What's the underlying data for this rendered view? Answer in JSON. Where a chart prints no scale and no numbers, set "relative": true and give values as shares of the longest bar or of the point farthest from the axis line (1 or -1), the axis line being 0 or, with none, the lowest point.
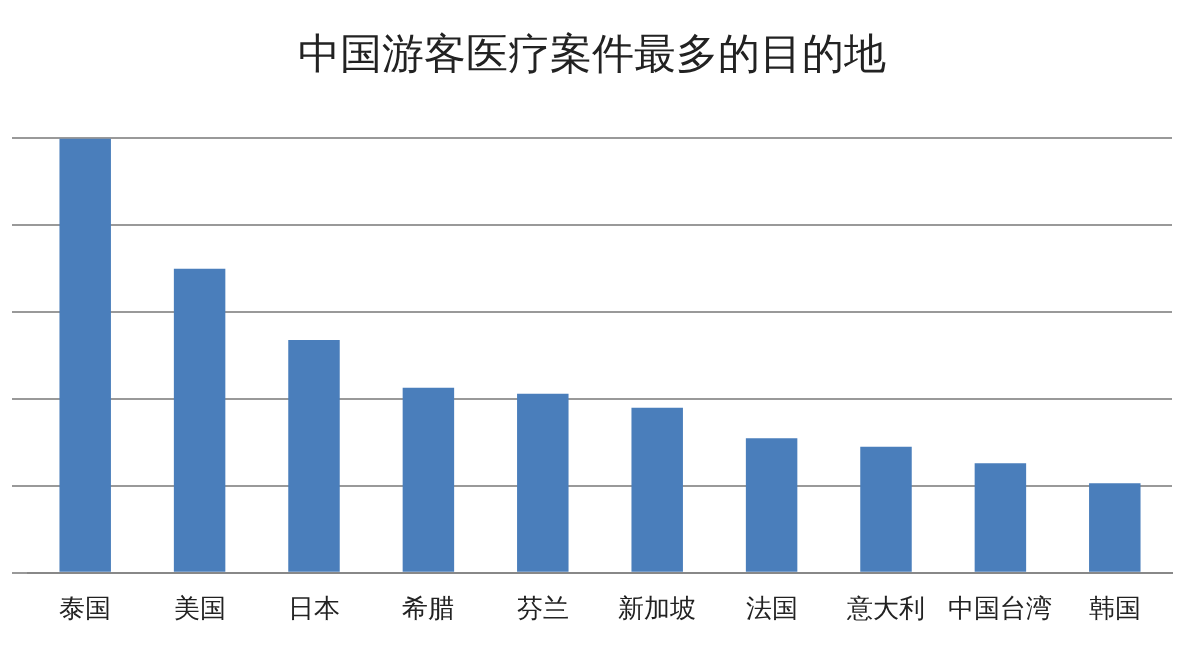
{
  "chart_data": {
    "type": "bar",
    "title": "中国游客医疗案件最多的目的地",
    "categories": [
      "泰国",
      "美国",
      "日本",
      "希腊",
      "芬兰",
      "新加坡",
      "法国",
      "意大利",
      "中国台湾",
      "韩国"
    ],
    "values": [
      1,
      0.7,
      0.536,
      0.426,
      0.412,
      0.38,
      0.31,
      0.29,
      0.252,
      0.206
    ],
    "color": "#4a7ebb",
    "relative": true,
    "grid": "y",
    "legend": false
  }
}
